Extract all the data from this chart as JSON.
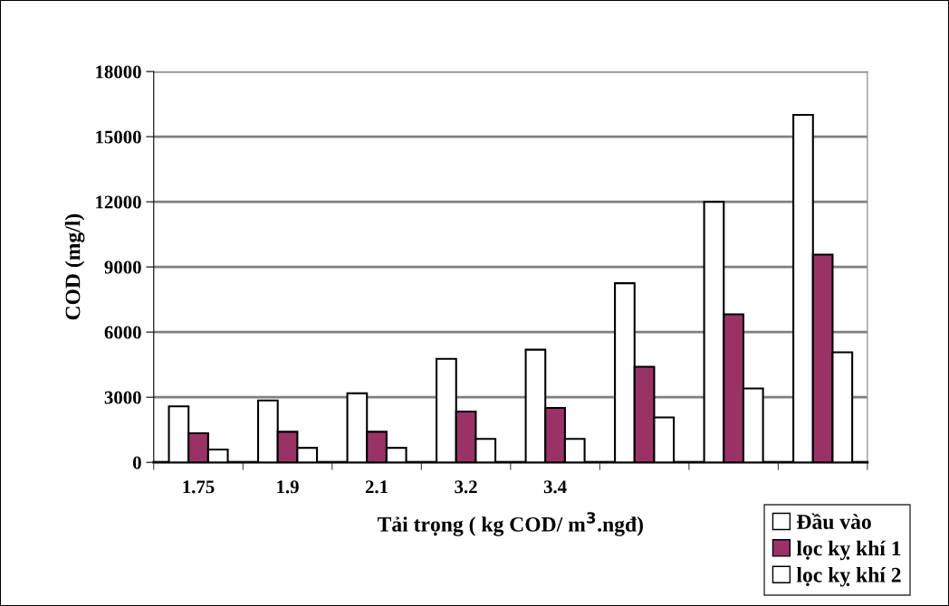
{
  "chart_data": {
    "type": "bar",
    "xlabel": "Tải trọng ( kg COD/ m$^{3}$.ngđ)",
    "ylabel": "COD (mg/l)",
    "categories": [
      "1.75",
      "1.9",
      "2.1",
      "3.2",
      "3.4",
      null,
      null,
      null
    ],
    "series": [
      {
        "name": "Đầu vào",
        "color": "#ffffff",
        "values": [
          2580,
          2850,
          3180,
          4770,
          5190,
          8250,
          12000,
          16000
        ]
      },
      {
        "name": "lọc kỵ khí 1",
        "color": "#993366",
        "values": [
          1340,
          1410,
          1410,
          2340,
          2510,
          4400,
          6820,
          9570
        ]
      },
      {
        "name": "lọc kỵ khí 2",
        "color": "#ffffff",
        "values": [
          590,
          670,
          670,
          1080,
          1080,
          2070,
          3400,
          5070
        ]
      }
    ],
    "ylim": [
      0,
      18000
    ],
    "yticks": [
      0,
      3000,
      6000,
      9000,
      12000,
      15000,
      18000
    ],
    "grid": "y",
    "legend": "bottom right"
  }
}
